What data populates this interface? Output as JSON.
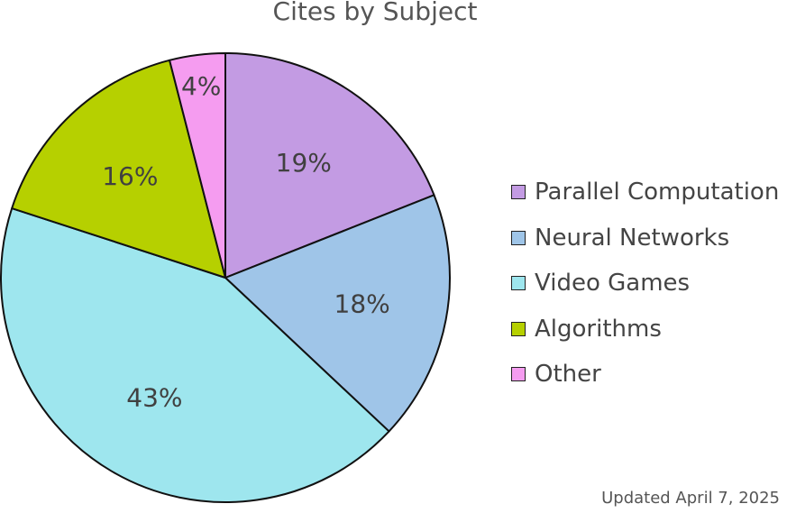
{
  "chart_data": {
    "type": "pie",
    "title": "Cites by Subject",
    "categories": [
      "Parallel Computation",
      "Neural Networks",
      "Video Games",
      "Algorithms",
      "Other"
    ],
    "values": [
      19,
      18,
      43,
      16,
      4
    ],
    "data_labels": [
      "19%",
      "18%",
      "43%",
      "16%",
      "4%"
    ],
    "colors": [
      "#c39be3",
      "#9fc5e8",
      "#9ee6ee",
      "#b6d000",
      "#f59cf0"
    ],
    "start_angle": "12 o'clock",
    "direction": "clockwise",
    "legend_position": "right"
  },
  "legend": {
    "items": [
      {
        "label": "Parallel Computation",
        "color": "#c39be3"
      },
      {
        "label": "Neural Networks",
        "color": "#9fc5e8"
      },
      {
        "label": "Video Games",
        "color": "#9ee6ee"
      },
      {
        "label": "Algorithms",
        "color": "#b6d000"
      },
      {
        "label": "Other",
        "color": "#f59cf0"
      }
    ]
  },
  "footer": {
    "updated": "Updated April 7, 2025"
  }
}
